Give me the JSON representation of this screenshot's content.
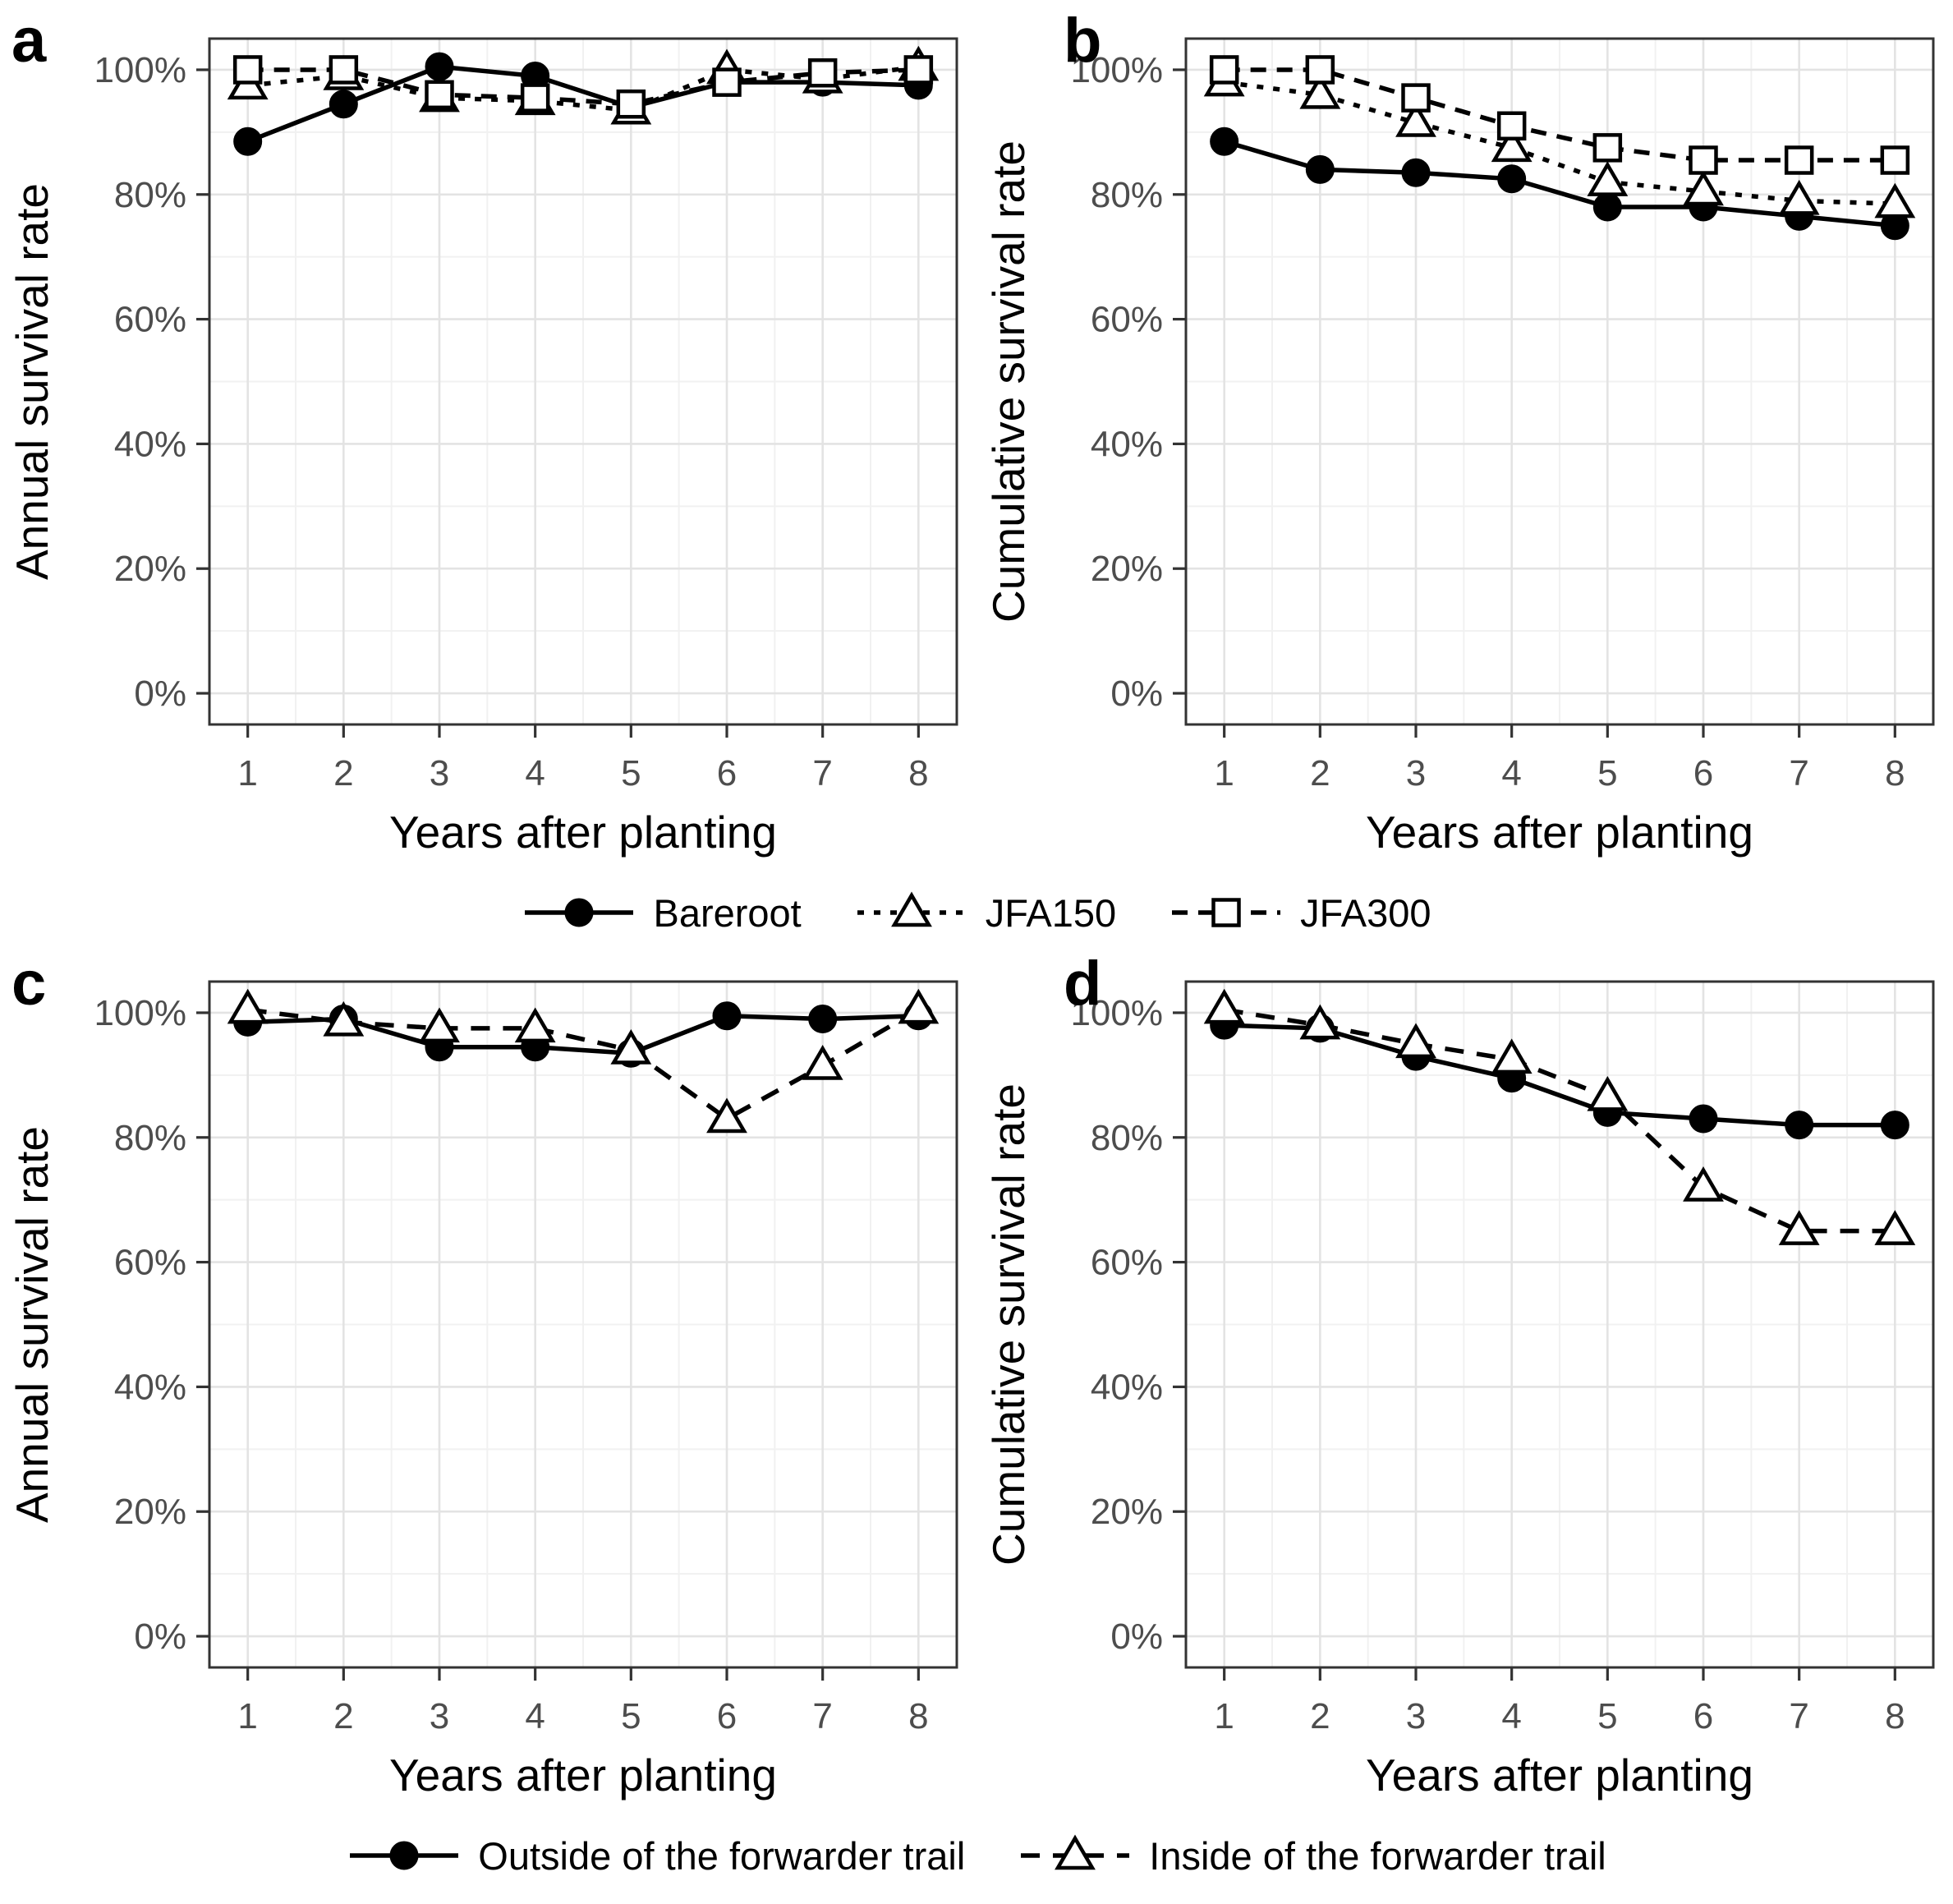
{
  "colors": {
    "series": "#000000",
    "tick_label": "#4d4d4d",
    "axis_title": "#000000",
    "grid_major": "#e3e3e3",
    "grid_minor": "#f1f1f1",
    "panel_border": "#333333",
    "background": "#ffffff"
  },
  "chart_data": [
    {
      "panel_label": "a",
      "type": "line",
      "title": "",
      "xlabel": "Years after planting",
      "ylabel": "Annual survival rate",
      "x": [
        1,
        2,
        3,
        4,
        5,
        6,
        7,
        8
      ],
      "xlim": [
        0.6,
        8.4
      ],
      "ylim": [
        -5,
        105
      ],
      "xtick_labels": [
        "1",
        "2",
        "3",
        "4",
        "5",
        "6",
        "7",
        "8"
      ],
      "ytick_values": [
        0,
        20,
        40,
        60,
        80,
        100
      ],
      "ytick_labels": [
        "0%",
        "20%",
        "40%",
        "60%",
        "80%",
        "100%"
      ],
      "grid": "major+minor",
      "legend_position": "none",
      "series": [
        {
          "name": "Bareroot",
          "marker": "circle-filled",
          "line": "solid",
          "values": [
            88.5,
            94.5,
            100.5,
            99,
            94,
            98,
            98,
            97.5
          ]
        },
        {
          "name": "JFA150",
          "marker": "triangle-open",
          "line": "shortdash",
          "values": [
            97.5,
            99,
            95.5,
            95,
            93.5,
            100,
            98.5,
            100.5
          ]
        },
        {
          "name": "JFA300",
          "marker": "square-open",
          "line": "dash",
          "values": [
            100,
            100,
            96,
            95.5,
            94.5,
            98,
            99.5,
            100
          ]
        }
      ]
    },
    {
      "panel_label": "b",
      "type": "line",
      "title": "",
      "xlabel": "Years after planting",
      "ylabel": "Cumulative survival rate",
      "x": [
        1,
        2,
        3,
        4,
        5,
        6,
        7,
        8
      ],
      "xlim": [
        0.6,
        8.4
      ],
      "ylim": [
        -5,
        105
      ],
      "xtick_labels": [
        "1",
        "2",
        "3",
        "4",
        "5",
        "6",
        "7",
        "8"
      ],
      "ytick_values": [
        0,
        20,
        40,
        60,
        80,
        100
      ],
      "ytick_labels": [
        "0%",
        "20%",
        "40%",
        "60%",
        "80%",
        "100%"
      ],
      "grid": "major+minor",
      "legend_position": "none",
      "series": [
        {
          "name": "Bareroot",
          "marker": "circle-filled",
          "line": "solid",
          "values": [
            88.5,
            84,
            83.5,
            82.5,
            78,
            78,
            76.5,
            75
          ]
        },
        {
          "name": "JFA150",
          "marker": "triangle-open",
          "line": "shortdash",
          "values": [
            98,
            96,
            91.5,
            87.5,
            82,
            80.5,
            79,
            78.5
          ]
        },
        {
          "name": "JFA300",
          "marker": "square-open",
          "line": "dash",
          "values": [
            100,
            100,
            95.5,
            91,
            87.5,
            85.5,
            85.5,
            85.5
          ]
        }
      ]
    },
    {
      "panel_label": "c",
      "type": "line",
      "title": "",
      "xlabel": "Years after planting",
      "ylabel": "Annual survival rate",
      "x": [
        1,
        2,
        3,
        4,
        5,
        6,
        7,
        8
      ],
      "xlim": [
        0.6,
        8.4
      ],
      "ylim": [
        -5,
        105
      ],
      "xtick_labels": [
        "1",
        "2",
        "3",
        "4",
        "5",
        "6",
        "7",
        "8"
      ],
      "ytick_values": [
        0,
        20,
        40,
        60,
        80,
        100
      ],
      "ytick_labels": [
        "0%",
        "20%",
        "40%",
        "60%",
        "80%",
        "100%"
      ],
      "grid": "major+minor",
      "legend_position": "none",
      "series": [
        {
          "name": "Outside of the forwarder trail",
          "marker": "circle-filled",
          "line": "solid",
          "values": [
            98.5,
            99,
            94.5,
            94.5,
            93.5,
            99.5,
            99,
            99.5
          ]
        },
        {
          "name": "Inside of the forwarder trail",
          "marker": "triangle-open",
          "line": "longdash",
          "values": [
            100.5,
            98.5,
            97.5,
            97.5,
            94,
            83,
            91.5,
            100.5
          ]
        }
      ]
    },
    {
      "panel_label": "d",
      "type": "line",
      "title": "",
      "xlabel": "Years after planting",
      "ylabel": "Cumulative survival rate",
      "x": [
        1,
        2,
        3,
        4,
        5,
        6,
        7,
        8
      ],
      "xlim": [
        0.6,
        8.4
      ],
      "ylim": [
        -5,
        105
      ],
      "xtick_labels": [
        "1",
        "2",
        "3",
        "4",
        "5",
        "6",
        "7",
        "8"
      ],
      "ytick_values": [
        0,
        20,
        40,
        60,
        80,
        100
      ],
      "ytick_labels": [
        "0%",
        "20%",
        "40%",
        "60%",
        "80%",
        "100%"
      ],
      "grid": "major+minor",
      "legend_position": "none",
      "series": [
        {
          "name": "Outside of the forwarder trail",
          "marker": "circle-filled",
          "line": "solid",
          "values": [
            98,
            97.5,
            93,
            89.5,
            84,
            83,
            82,
            82
          ]
        },
        {
          "name": "Inside of the forwarder trail",
          "marker": "triangle-open",
          "line": "longdash",
          "values": [
            100.5,
            98,
            95,
            92.5,
            86.5,
            72,
            65,
            65
          ]
        }
      ]
    }
  ],
  "legends": [
    {
      "position": "below-top-row",
      "items": [
        {
          "label": "Bareroot",
          "marker": "circle-filled",
          "line": "solid"
        },
        {
          "label": "JFA150",
          "marker": "triangle-open",
          "line": "shortdash"
        },
        {
          "label": "JFA300",
          "marker": "square-open",
          "line": "dash"
        }
      ]
    },
    {
      "position": "below-bottom-row",
      "items": [
        {
          "label": "Outside of the forwarder trail",
          "marker": "circle-filled",
          "line": "solid"
        },
        {
          "label": "Inside of the forwarder trail",
          "marker": "triangle-open",
          "line": "longdash"
        }
      ]
    }
  ]
}
